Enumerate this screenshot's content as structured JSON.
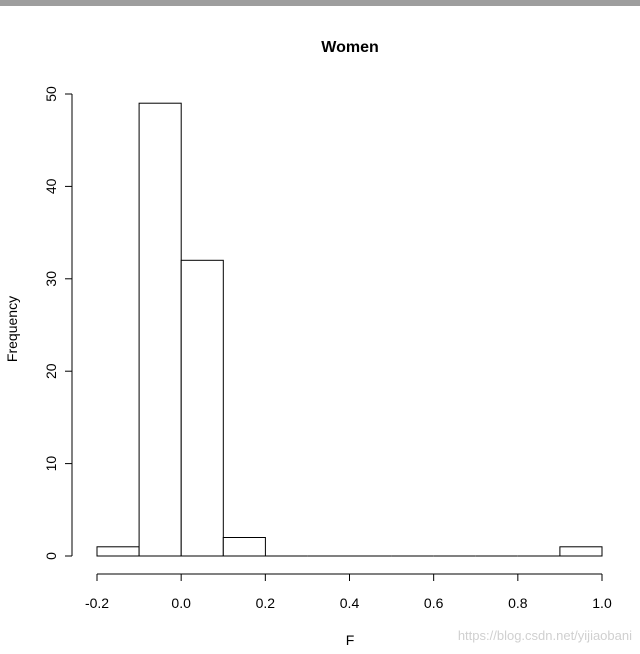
{
  "chart_data": {
    "type": "bar",
    "title": "Women",
    "xlabel": "F",
    "ylabel": "Frequency",
    "bins": [
      {
        "start": -0.2,
        "end": -0.1,
        "count": 1
      },
      {
        "start": -0.1,
        "end": 0.0,
        "count": 49
      },
      {
        "start": 0.0,
        "end": 0.1,
        "count": 32
      },
      {
        "start": 0.1,
        "end": 0.2,
        "count": 2
      },
      {
        "start": 0.2,
        "end": 0.3,
        "count": 0
      },
      {
        "start": 0.3,
        "end": 0.4,
        "count": 0
      },
      {
        "start": 0.4,
        "end": 0.5,
        "count": 0
      },
      {
        "start": 0.5,
        "end": 0.6,
        "count": 0
      },
      {
        "start": 0.6,
        "end": 0.7,
        "count": 0
      },
      {
        "start": 0.7,
        "end": 0.8,
        "count": 0
      },
      {
        "start": 0.8,
        "end": 0.9,
        "count": 0
      },
      {
        "start": 0.9,
        "end": 1.0,
        "count": 1
      }
    ],
    "xlim": [
      -0.2,
      1.0
    ],
    "ylim": [
      0,
      50
    ],
    "x_ticks": [
      "-0.2",
      "0.0",
      "0.2",
      "0.4",
      "0.6",
      "0.8",
      "1.0"
    ],
    "y_ticks": [
      "0",
      "10",
      "20",
      "30",
      "40",
      "50"
    ],
    "grid": false
  },
  "watermark": "https://blog.csdn.net/yijiaobani"
}
